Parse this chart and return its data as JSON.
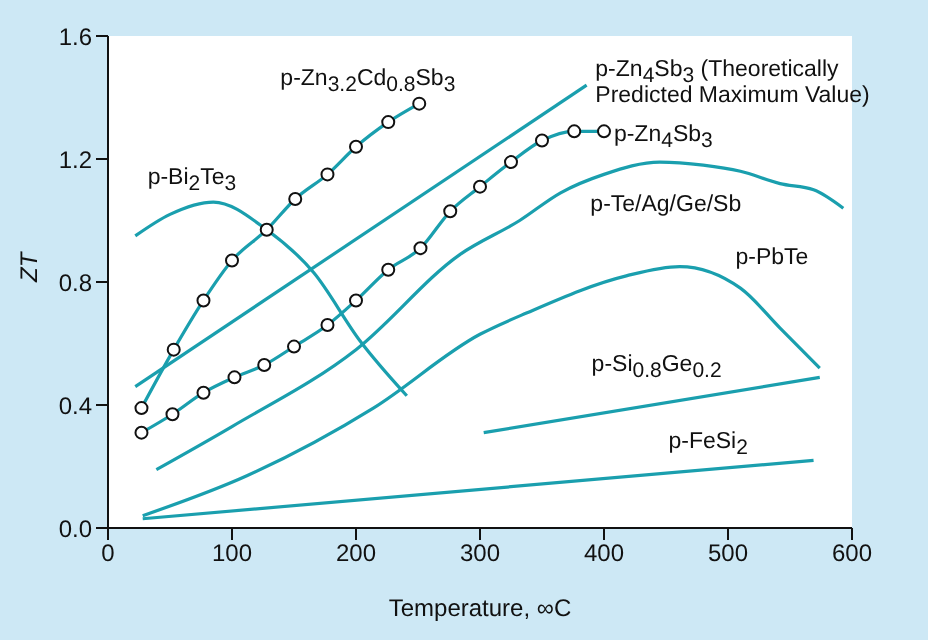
{
  "chart_data": {
    "type": "line",
    "xlabel": "Temperature, ∞C",
    "ylabel": "ZT",
    "xlim": [
      0,
      600
    ],
    "xticks": [
      0,
      100,
      200,
      300,
      400,
      500,
      600
    ],
    "ylim": [
      0,
      1.6
    ],
    "yticks": [
      {
        "value": 0,
        "label": "0.0"
      },
      {
        "value": 0.4,
        "label": "0.4"
      },
      {
        "value": 0.8,
        "label": "0.8"
      },
      {
        "value": 1.2,
        "label": "1.2"
      },
      {
        "value": 1.6,
        "label": "1.6"
      }
    ],
    "series": [
      {
        "name": "p-Zn$_{3.2}$Cd$_{0.8}$Sb$_{3}$",
        "color": "#1a9fae",
        "marker": "circle",
        "x": [
          27,
          53,
          77,
          100,
          128,
          151,
          177,
          200,
          226,
          251
        ],
        "values": [
          0.39,
          0.58,
          0.74,
          0.87,
          0.97,
          1.07,
          1.15,
          1.24,
          1.32,
          1.38
        ]
      },
      {
        "name": "p-Bi$_{2}$Te$_{3}$",
        "color": "#1a9fae",
        "marker": "none",
        "x": [
          22,
          50,
          85,
          128,
          166,
          203,
          241
        ],
        "values": [
          0.95,
          1.02,
          1.06,
          0.97,
          0.83,
          0.61,
          0.43
        ]
      },
      {
        "name": "p-Zn$_{4}$Sb$_{3}$ (Theoretically Predicted Maximum Value)",
        "color": "#1a9fae",
        "marker": "none",
        "x": [
          22,
          386
        ],
        "values": [
          0.46,
          1.44
        ]
      },
      {
        "name": "p-Zn$_{4}$Sb$_{3}$",
        "color": "#1a9fae",
        "marker": "circle",
        "x": [
          27,
          52,
          77,
          102,
          126,
          150,
          177,
          200,
          226,
          252,
          276,
          300,
          325,
          350,
          376,
          400
        ],
        "values": [
          0.31,
          0.37,
          0.44,
          0.49,
          0.53,
          0.59,
          0.66,
          0.74,
          0.84,
          0.91,
          1.03,
          1.11,
          1.19,
          1.26,
          1.29,
          1.29
        ]
      },
      {
        "name": "p-Te/Ag/Ge/Sb",
        "color": "#1a9fae",
        "marker": "none",
        "x": [
          39,
          100,
          200,
          284,
          332,
          365,
          400,
          445,
          480,
          510,
          542,
          569,
          593
        ],
        "values": [
          0.19,
          0.33,
          0.58,
          0.89,
          1.0,
          1.09,
          1.15,
          1.19,
          1.18,
          1.16,
          1.12,
          1.1,
          1.04
        ]
      },
      {
        "name": "p-PbTe",
        "color": "#1a9fae",
        "marker": "none",
        "x": [
          28,
          112,
          214,
          300,
          338,
          418,
          461,
          510,
          542,
          574
        ],
        "values": [
          0.04,
          0.17,
          0.39,
          0.63,
          0.7,
          0.82,
          0.85,
          0.78,
          0.65,
          0.52
        ]
      },
      {
        "name": "p-Si$_{0.8}$Ge$_{0.2}$",
        "color": "#1a9fae",
        "marker": "none",
        "x": [
          303,
          574
        ],
        "values": [
          0.31,
          0.49
        ]
      },
      {
        "name": "p-FeSi$_{2}$",
        "color": "#1a9fae",
        "marker": "none",
        "x": [
          28,
          569
        ],
        "values": [
          0.03,
          0.22
        ]
      }
    ]
  }
}
